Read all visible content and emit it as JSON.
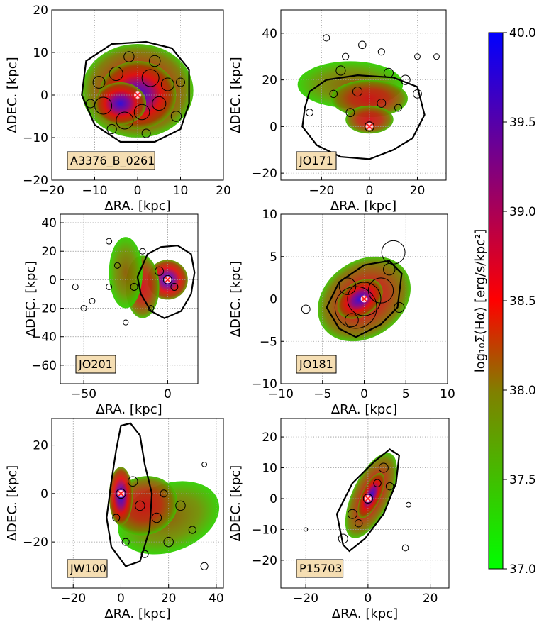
{
  "figure": {
    "description_free": true
  },
  "colorbar": {
    "label": "log₁₀Σ(Hα)  [erg/s/kpc²]",
    "min": 37.0,
    "max": 40.0,
    "ticks": [
      "37.0",
      "37.5",
      "38.0",
      "38.5",
      "39.0",
      "39.5",
      "40.0"
    ],
    "colors": [
      "#00ff00",
      "#808000",
      "#ff0000",
      "#800080",
      "#0000ff"
    ]
  },
  "chart_data": [
    {
      "type": "scatter",
      "galaxy": "A3376_B_0261",
      "xlabel": "ΔRA. [kpc]",
      "ylabel": "ΔDEC. [kpc]",
      "xlim": [
        -20,
        20
      ],
      "ylim": [
        -20,
        20
      ],
      "xticks": [
        "−20",
        "−10",
        "0",
        "10",
        "20"
      ],
      "yticks": [
        "−20",
        "−10",
        "0",
        "10",
        "20"
      ],
      "grid": true,
      "center": [
        0,
        0
      ]
    },
    {
      "type": "scatter",
      "galaxy": "JO171",
      "xlabel": "ΔRA. [kpc]",
      "ylabel": "ΔDEC. [kpc]",
      "xlim": [
        -37,
        32
      ],
      "ylim": [
        -23,
        50
      ],
      "xticks": [
        "−20",
        "0",
        "20"
      ],
      "yticks": [
        "−20",
        "0",
        "20",
        "40"
      ],
      "grid": true,
      "center": [
        0,
        0
      ]
    },
    {
      "type": "scatter",
      "galaxy": "JO201",
      "xlabel": "ΔRA. [kpc]",
      "ylabel": "ΔDEC. [kpc]",
      "xlim": [
        -64,
        18
      ],
      "ylim": [
        -73,
        46
      ],
      "xticks": [
        "−50",
        "0"
      ],
      "yticks": [
        "−60",
        "−40",
        "−20",
        "0",
        "20",
        "40"
      ],
      "grid": true,
      "center": [
        0,
        0
      ]
    },
    {
      "type": "scatter",
      "galaxy": "JO181",
      "xlabel": "ΔRA. [kpc]",
      "ylabel": "ΔDEC. [kpc]",
      "xlim": [
        -10,
        10
      ],
      "ylim": [
        -10,
        10
      ],
      "xticks": [
        "−10",
        "−5",
        "0",
        "5",
        "10"
      ],
      "yticks": [
        "−10",
        "−5",
        "0",
        "5",
        "10"
      ],
      "grid": true,
      "center": [
        0,
        0
      ]
    },
    {
      "type": "scatter",
      "galaxy": "JW100",
      "xlabel": "ΔRA. [kpc]",
      "ylabel": "ΔDEC. [kpc]",
      "xlim": [
        -29,
        43
      ],
      "ylim": [
        -39,
        31
      ],
      "xticks": [
        "−20",
        "0",
        "20",
        "40"
      ],
      "yticks": [
        "−20",
        "0",
        "20"
      ],
      "grid": true,
      "center": [
        0,
        0
      ]
    },
    {
      "type": "scatter",
      "galaxy": "P15703",
      "xlabel": "ΔRA. [kpc]",
      "ylabel": "ΔDEC. [kpc]",
      "xlim": [
        -28,
        26
      ],
      "ylim": [
        -29,
        26
      ],
      "xticks": [
        "−20",
        "0",
        "20"
      ],
      "yticks": [
        "−20",
        "−10",
        "0",
        "10",
        "20"
      ],
      "grid": true,
      "center": [
        0,
        0
      ]
    }
  ]
}
